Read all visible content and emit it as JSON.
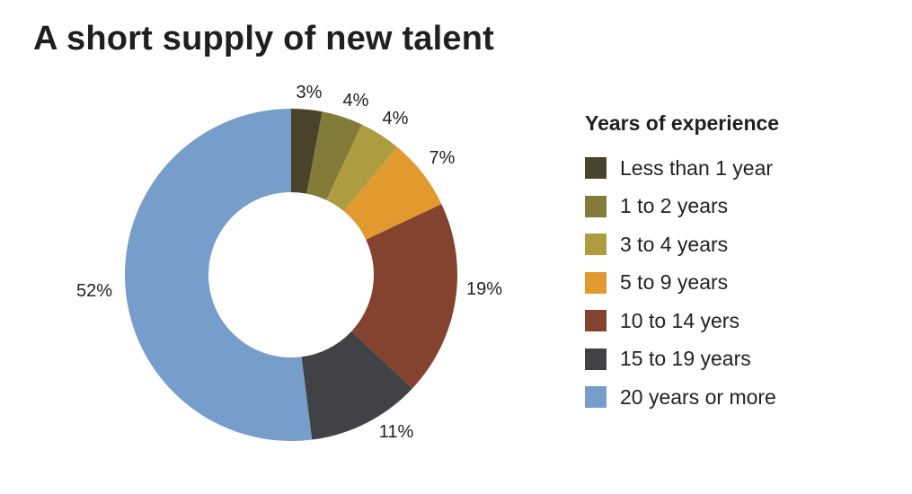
{
  "title": "A short supply of new talent",
  "legend": {
    "title": "Years of experience",
    "items": [
      {
        "label": "Less than 1 year",
        "color": "#48432a"
      },
      {
        "label": "1 to 2 years",
        "color": "#837b38"
      },
      {
        "label": "3 to 4 years",
        "color": "#ae9c40"
      },
      {
        "label": "5 to 9 years",
        "color": "#e09a30"
      },
      {
        "label": "10 to 14 yers",
        "color": "#84432f"
      },
      {
        "label": "15 to 19 years",
        "color": "#404246"
      },
      {
        "label": "20 years or more",
        "color": "#779dcb"
      }
    ]
  },
  "slice_labels": [
    "3%",
    "4%",
    "4%",
    "7%",
    "19%",
    "11%",
    "52%"
  ],
  "chart_data": {
    "type": "pie",
    "variant": "donut",
    "title": "A short supply of new talent",
    "legend_title": "Years of experience",
    "legend_position": "right",
    "categories": [
      "Less than 1 year",
      "1 to 2 years",
      "3 to 4 years",
      "5 to 9 years",
      "10 to 14 yers",
      "15 to 19 years",
      "20 years or more"
    ],
    "values": [
      3,
      4,
      4,
      7,
      19,
      11,
      52
    ],
    "unit": "%",
    "colors": [
      "#48432a",
      "#837b38",
      "#ae9c40",
      "#e09a30",
      "#84432f",
      "#404246",
      "#779dcb"
    ],
    "start_angle": "12 o'clock",
    "direction": "clockwise"
  }
}
